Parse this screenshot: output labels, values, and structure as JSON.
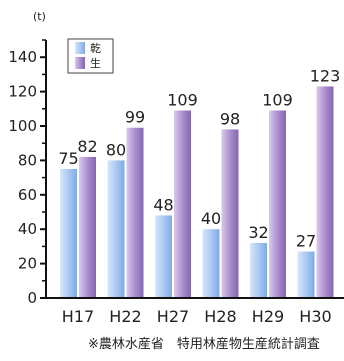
{
  "chart_data": {
    "type": "bar",
    "unit": "(t)",
    "categories": [
      "H17",
      "H22",
      "H27",
      "H28",
      "H29",
      "H30"
    ],
    "series": [
      {
        "name": "乾",
        "values": [
          75,
          80,
          48,
          40,
          32,
          27
        ],
        "color": "#8fb8ee"
      },
      {
        "name": "生",
        "values": [
          82,
          99,
          109,
          98,
          109,
          123
        ],
        "color": "#9d7fc3"
      }
    ],
    "ylim": [
      0,
      150
    ],
    "yticks": [
      "0",
      "20",
      "40",
      "60",
      "80",
      "100",
      "120",
      "140"
    ],
    "legend_position": "top-left",
    "grid": false
  },
  "source_note": "※農林水産省　特用林産物生産統計調査"
}
